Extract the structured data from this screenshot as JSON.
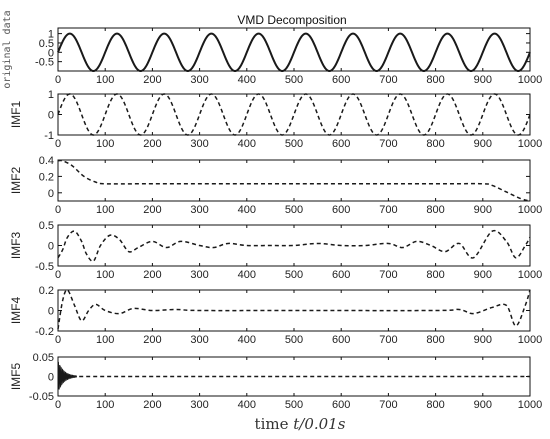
{
  "chart_data": {
    "type": "line",
    "title": "VMD Decomposition",
    "xlabel_prefix": "time ",
    "xlabel_italic": "t/0.01s",
    "x": {
      "lim": [
        0,
        1000
      ],
      "ticks": [
        "0",
        "100",
        "200",
        "300",
        "400",
        "500",
        "600",
        "700",
        "800",
        "900",
        "1000"
      ]
    },
    "panels": [
      {
        "name": "original data",
        "ylim": [
          -1,
          1.3
        ],
        "yticks": [
          {
            "v": 1,
            "label": "1"
          },
          {
            "v": 0.5,
            "label": "0.5"
          },
          {
            "v": 0,
            "label": "0"
          },
          {
            "v": -0.5,
            "label": "-0.5"
          }
        ],
        "style": "solid",
        "signal": "sine",
        "amplitude": 1,
        "period": 100
      },
      {
        "name": "IMF1",
        "ylim": [
          -1,
          1
        ],
        "yticks": [
          {
            "v": 1,
            "label": "1"
          },
          {
            "v": 0,
            "label": "0"
          },
          {
            "v": -1,
            "label": "-1"
          }
        ],
        "style": "dashed",
        "signal": "sine",
        "amplitude": 1,
        "period": 100
      },
      {
        "name": "IMF2",
        "ylim": [
          -0.1,
          0.4
        ],
        "yticks": [
          {
            "v": 0.4,
            "label": "0.4"
          },
          {
            "v": 0.2,
            "label": "0.2"
          },
          {
            "v": 0,
            "label": "0"
          }
        ],
        "style": "dashed",
        "signal": "points",
        "points": [
          [
            0,
            0.39
          ],
          [
            10,
            0.39
          ],
          [
            30,
            0.33
          ],
          [
            55,
            0.2
          ],
          [
            80,
            0.13
          ],
          [
            100,
            0.11
          ],
          [
            200,
            0.11
          ],
          [
            500,
            0.11
          ],
          [
            800,
            0.11
          ],
          [
            900,
            0.11
          ],
          [
            920,
            0.09
          ],
          [
            950,
            0.01
          ],
          [
            980,
            -0.07
          ],
          [
            1000,
            -0.1
          ]
        ]
      },
      {
        "name": "IMF3",
        "ylim": [
          -0.5,
          0.5
        ],
        "yticks": [
          {
            "v": 0.5,
            "label": "0.5"
          },
          {
            "v": 0,
            "label": "0"
          },
          {
            "v": -0.5,
            "label": "-0.5"
          }
        ],
        "style": "dashed",
        "signal": "points",
        "points": [
          [
            0,
            -0.3
          ],
          [
            10,
            -0.1
          ],
          [
            20,
            0.2
          ],
          [
            35,
            0.35
          ],
          [
            50,
            0.1
          ],
          [
            60,
            -0.2
          ],
          [
            75,
            -0.38
          ],
          [
            90,
            0.0
          ],
          [
            110,
            0.25
          ],
          [
            130,
            0.15
          ],
          [
            150,
            -0.15
          ],
          [
            170,
            -0.05
          ],
          [
            200,
            0.1
          ],
          [
            230,
            -0.05
          ],
          [
            260,
            0.1
          ],
          [
            300,
            0.0
          ],
          [
            330,
            -0.05
          ],
          [
            360,
            0.05
          ],
          [
            400,
            0.0
          ],
          [
            450,
            0.0
          ],
          [
            500,
            0.0
          ],
          [
            550,
            0.05
          ],
          [
            600,
            0.0
          ],
          [
            650,
            0.0
          ],
          [
            700,
            0.05
          ],
          [
            730,
            -0.05
          ],
          [
            760,
            0.1
          ],
          [
            790,
            0.0
          ],
          [
            820,
            -0.15
          ],
          [
            850,
            0.05
          ],
          [
            880,
            -0.3
          ],
          [
            920,
            0.35
          ],
          [
            950,
            0.1
          ],
          [
            970,
            -0.3
          ],
          [
            990,
            0.0
          ],
          [
            1000,
            0.2
          ]
        ]
      },
      {
        "name": "IMF4",
        "ylim": [
          -0.2,
          0.2
        ],
        "yticks": [
          {
            "v": 0.2,
            "label": "0.2"
          },
          {
            "v": 0,
            "label": "0"
          },
          {
            "v": -0.2,
            "label": "-0.2"
          }
        ],
        "style": "dashed",
        "signal": "points",
        "points": [
          [
            0,
            -0.18
          ],
          [
            10,
            0.1
          ],
          [
            20,
            0.2
          ],
          [
            35,
            0.05
          ],
          [
            50,
            -0.1
          ],
          [
            65,
            0.0
          ],
          [
            80,
            0.06
          ],
          [
            100,
            0.0
          ],
          [
            130,
            -0.03
          ],
          [
            160,
            0.02
          ],
          [
            200,
            0.0
          ],
          [
            250,
            0.01
          ],
          [
            300,
            0.0
          ],
          [
            500,
            0.0
          ],
          [
            800,
            0.0
          ],
          [
            850,
            0.01
          ],
          [
            880,
            -0.03
          ],
          [
            920,
            0.03
          ],
          [
            950,
            0.05
          ],
          [
            970,
            -0.15
          ],
          [
            990,
            0.05
          ],
          [
            1000,
            0.2
          ]
        ]
      },
      {
        "name": "IMF5",
        "ylim": [
          -0.05,
          0.05
        ],
        "yticks": [
          {
            "v": 0.05,
            "label": "0.05"
          },
          {
            "v": 0,
            "label": "0"
          },
          {
            "v": -0.05,
            "label": "-0.05"
          }
        ],
        "style": "dashed",
        "signal": "points",
        "burst": true,
        "points": [
          [
            0,
            0.0
          ],
          [
            30,
            0.0
          ],
          [
            100,
            0.0
          ],
          [
            1000,
            0.0
          ]
        ]
      }
    ],
    "grid": false,
    "colors": {
      "line": "#1a1a1a",
      "axes": "#111111"
    }
  }
}
